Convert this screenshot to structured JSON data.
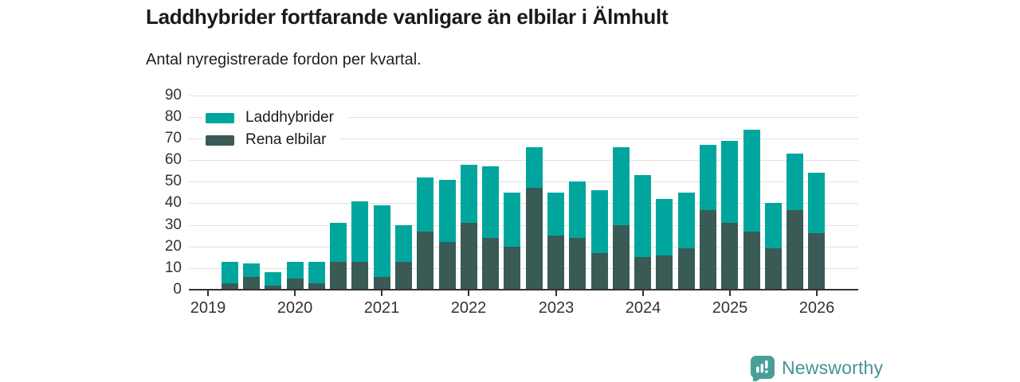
{
  "title": "Laddhybrider fortfarande vanligare än elbilar i Älmhult",
  "subtitle": "Antal nyregistrerade fordon per kvartal.",
  "legend": {
    "items": [
      {
        "label": "Laddhybrider",
        "color": "#00a69d"
      },
      {
        "label": "Rena elbilar",
        "color": "#3a5a56"
      }
    ]
  },
  "logo": {
    "text": "Newsworthy",
    "text_color": "#45948f",
    "icon_color": "#4a9e98",
    "icon_glyph_color": "#ffffff"
  },
  "colors": {
    "background": "#ffffff",
    "gridline": "#e2e2e2",
    "axis": "#333333",
    "axis_label": "#333333",
    "title_text": "#1a1a1a"
  },
  "chart_data": {
    "type": "bar",
    "stacked": true,
    "title": "Laddhybrider fortfarande vanligare än elbilar i Älmhult",
    "subtitle": "Antal nyregistrerade fordon per kvartal.",
    "xlabel": "",
    "ylabel": "",
    "ylim": [
      0,
      90
    ],
    "y_ticks": [
      0,
      10,
      20,
      30,
      40,
      50,
      60,
      70,
      80,
      90
    ],
    "x_tick_years": [
      "2019",
      "2020",
      "2021",
      "2022",
      "2023",
      "2024",
      "2025",
      "2026"
    ],
    "grid": "horizontal",
    "legend_position": "top-left-inside",
    "categories": [
      "2019 Q2",
      "2019 Q3",
      "2019 Q4",
      "2020 Q1",
      "2020 Q2",
      "2020 Q3",
      "2020 Q4",
      "2021 Q1",
      "2021 Q2",
      "2021 Q3",
      "2021 Q4",
      "2022 Q1",
      "2022 Q2",
      "2022 Q3",
      "2022 Q4",
      "2023 Q1",
      "2023 Q2",
      "2023 Q3",
      "2023 Q4",
      "2024 Q1",
      "2024 Q2",
      "2024 Q3",
      "2024 Q4",
      "2025 Q1",
      "2025 Q2",
      "2025 Q3",
      "2025 Q4",
      "2026 Q1"
    ],
    "series": [
      {
        "name": "Laddhybrider",
        "color": "#00a69d",
        "stack_order": "top",
        "values": [
          10,
          6,
          6,
          8,
          10,
          18,
          28,
          33,
          17,
          25,
          29,
          27,
          33,
          25,
          19,
          20,
          26,
          29,
          36,
          38,
          26,
          26,
          30,
          38,
          47,
          21,
          26,
          28
        ]
      },
      {
        "name": "Rena elbilar",
        "color": "#3a5a56",
        "stack_order": "bottom",
        "values": [
          3,
          6,
          2,
          5,
          3,
          13,
          13,
          6,
          13,
          27,
          22,
          31,
          24,
          20,
          47,
          25,
          24,
          17,
          30,
          15,
          16,
          19,
          37,
          31,
          27,
          19,
          37,
          26
        ]
      }
    ],
    "totals": [
      13,
      12,
      8,
      13,
      13,
      31,
      41,
      39,
      30,
      52,
      51,
      58,
      57,
      45,
      66,
      45,
      50,
      46,
      66,
      53,
      42,
      45,
      67,
      69,
      74,
      40,
      63,
      54
    ]
  }
}
